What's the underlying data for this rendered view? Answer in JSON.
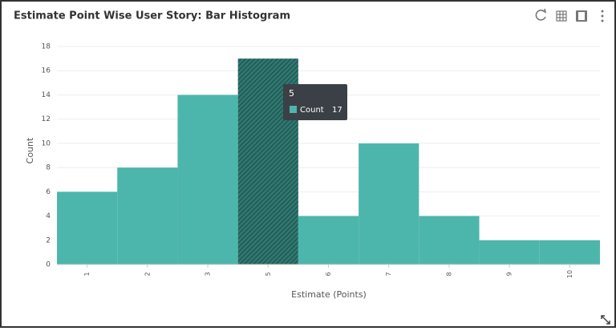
{
  "chart_data": {
    "type": "bar",
    "title": "Estimate Point Wise User Story: Bar Histogram",
    "x_label": "Estimate (Points)",
    "y_label": "Count",
    "categories": [
      "1",
      "2",
      "3",
      "5",
      "6",
      "7",
      "8",
      "9",
      "10"
    ],
    "series": [
      {
        "name": "Count",
        "color": "#4db6ac",
        "values": [
          6,
          8,
          14,
          17,
          4,
          10,
          4,
          2,
          2
        ]
      }
    ],
    "ylim": [
      0,
      18
    ],
    "yticks": [
      0,
      2,
      4,
      6,
      8,
      10,
      12,
      14,
      16,
      18
    ],
    "grid": true
  }
}
